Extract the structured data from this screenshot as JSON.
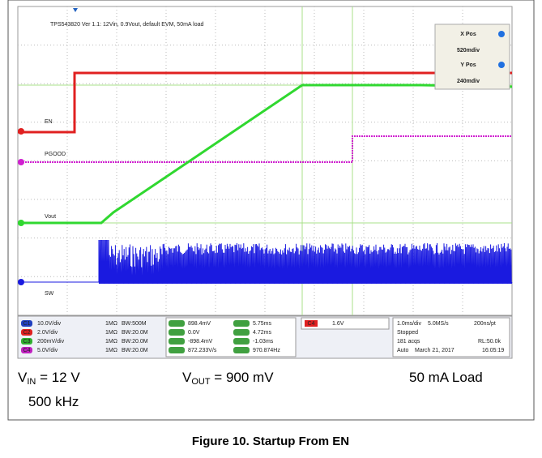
{
  "scope": {
    "title": "TPS543820 Ver 1.1: 12Vin, 0.9Vout, default EVM, 50mA load",
    "cursor_panel": {
      "x_label": "X Pos",
      "x_value": "520mdiv",
      "y_label": "Y Pos",
      "y_value": "240mdiv"
    },
    "trace_labels": [
      "EN",
      "PGOOD",
      "Vout",
      "SW"
    ],
    "channels": [
      {
        "badge": "C1",
        "scale": "10.0V/div",
        "impedance": "1MΩ",
        "bandwidth": "BW:500M"
      },
      {
        "badge": "C2",
        "scale": "2.0V/div",
        "impedance": "1MΩ",
        "bandwidth": "BW:20.0M"
      },
      {
        "badge": "C3",
        "scale": "200mV/div",
        "impedance": "1MΩ",
        "bandwidth": "BW:20.0M"
      },
      {
        "badge": "C4",
        "scale": "5.0V/div",
        "impedance": "1MΩ",
        "bandwidth": "BW:20.0M"
      }
    ],
    "measurements": [
      [
        "898.4mV",
        "5.75ms"
      ],
      [
        "0.0V",
        "4.72ms"
      ],
      [
        "-898.4mV",
        "-1.03ms"
      ],
      [
        "872.233V/s",
        "970.874Hz"
      ]
    ],
    "trigger": {
      "badge": "C4",
      "level": "1.6V"
    },
    "acquisition": {
      "time_scale": "1.0ms/div",
      "sample_rate": "5.0MS/s",
      "resolution": "200ns/pt",
      "state": "Stopped",
      "acqs": "181 acqs",
      "record_length": "RL:50.0k",
      "mode": "Auto",
      "date": "March 21, 2017",
      "time": "16:05:19"
    }
  },
  "captions": [
    {
      "main": "V",
      "sub": "IN",
      "rest": " = 12 V"
    },
    {
      "main": "V",
      "sub": "OUT",
      "rest": " = 900 mV"
    },
    {
      "main": "50 mA Load"
    },
    {
      "main": "500 kHz"
    }
  ],
  "figure_caption": "Figure 10. Startup From EN"
}
